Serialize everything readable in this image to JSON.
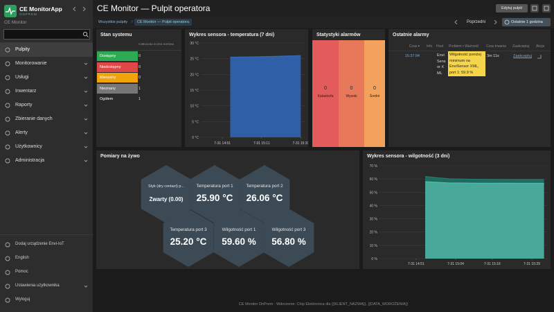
{
  "app": {
    "name": "CE MonitorApp",
    "edition": "ONPREM",
    "instance": "CE Monitor"
  },
  "menu": [
    "Pulpity",
    "Monitorowanie",
    "Usługi",
    "Inwentarz",
    "Raporty",
    "Zbieranie danych",
    "Alerty",
    "Użytkownicy",
    "Administracja"
  ],
  "bottom_menu": [
    "Dodaj urządzenie Envi-IoT",
    "English",
    "Pomoc",
    "Ustawienia użytkownika",
    "Wyloguj"
  ],
  "header": {
    "title": "CE Monitor — Pulpit operatora",
    "edit_button": "Edytuj pulpit"
  },
  "breadcrumb": {
    "root": "Wszystkie pulpity",
    "separator": "/",
    "current": "CE Monitor — Pulpit operatora"
  },
  "time_nav": {
    "previous": "Poprzedni",
    "range": "Ostatnie 1 godzina"
  },
  "system_status": {
    "title": "Stan systemu",
    "column": "Całkowita liczba hostów",
    "rows": [
      {
        "label": "Dostępny",
        "count": 0
      },
      {
        "label": "Niedostępny",
        "count": 0
      },
      {
        "label": "Mieszany",
        "count": 0
      },
      {
        "label": "Nieznany",
        "count": 1
      },
      {
        "label": "Ogółem",
        "count": 1
      }
    ]
  },
  "temperature_chart": {
    "type": "area",
    "title": "Wykres sensora - temperatura (7 dni)",
    "x": [
      "7-31 14:55",
      "7-31 15:05",
      "7-31 15:15",
      "7-31 15:25",
      "7-31 15:31"
    ],
    "values": [
      25.5,
      25.6,
      25.7,
      25.9,
      26.0
    ],
    "color": "#2f5fa6",
    "xlim": [
      "7-31 14:40",
      "7-31 15:33"
    ],
    "xticks": [
      "7-31 14:51",
      "7-31 15:11",
      "7-31 15:31"
    ],
    "ylim": [
      0,
      30
    ],
    "yticks": [
      {
        "value": 0,
        "label": "0 °C"
      },
      {
        "value": 5,
        "label": "5 °C"
      },
      {
        "value": 10,
        "label": "10 °C"
      },
      {
        "value": 15,
        "label": "15 °C"
      },
      {
        "value": 20,
        "label": "20 °C"
      },
      {
        "value": 25,
        "label": "25 °C"
      },
      {
        "value": 30,
        "label": "30 °C"
      }
    ],
    "grid": true
  },
  "alarm_stats": {
    "title": "Statystyki alarmów",
    "items": [
      {
        "label": "Katastrofa",
        "count": 0
      },
      {
        "label": "Wysoki",
        "count": 0
      },
      {
        "label": "Średni",
        "count": 0
      }
    ]
  },
  "recent_alarms": {
    "title": "Ostatnie alarmy",
    "columns": [
      "Czas ▾",
      "Info",
      "Host",
      "Problem • Ważność",
      "Czas trwania",
      "Zaakceptuj",
      "Akcje"
    ],
    "rows": [
      {
        "time": "15:37:04",
        "host": "EnviSensor XML",
        "problem": "Wilgotność poniżej minimum na EnviSensor XML, port 1: 59.9 %",
        "duration": "3m 11s",
        "ack": "Zaakceptuj"
      }
    ]
  },
  "live": {
    "title": "Pomiary na żywo",
    "tiles": [
      {
        "label": "Styk (dry contact) p...",
        "value": "Zwarty (0.00)"
      },
      {
        "label": "Temperatura port 1",
        "value": "25.90 °C"
      },
      {
        "label": "Temperatura port 2",
        "value": "26.06 °C"
      },
      {
        "label": "Temperatura port 3",
        "value": "25.20 °C"
      },
      {
        "label": "Wilgotność port 1",
        "value": "59.60 %"
      },
      {
        "label": "Wilgotność port 3",
        "value": "56.80 %"
      }
    ]
  },
  "humidity_chart": {
    "type": "area",
    "title": "Wykres sensora - wilgotność (3 dni)",
    "x": [
      "7-31 14:54",
      "7-31 14:58",
      "7-31 15:02",
      "7-31 15:06",
      "7-31 15:10",
      "7-31 15:15",
      "7-31 15:20",
      "7-31 15:25",
      "7-31 15:33"
    ],
    "series": [
      {
        "color": "#1f6b5f",
        "values": [
          62,
          61,
          60.2,
          60,
          59.8,
          59.7,
          59.6,
          59.6,
          59.6
        ]
      },
      {
        "color": "#48a899",
        "values": [
          58,
          57.5,
          57,
          57,
          56.9,
          56.8,
          56.9,
          56.8,
          56.8
        ]
      }
    ],
    "xlim": [
      "7-31 14:39",
      "7-31 15:34"
    ],
    "xticks": [
      "7-31 14:51",
      "7-31 15:04",
      "7-31 15:16",
      "7-31 15:29"
    ],
    "ylim": [
      0,
      70
    ],
    "yticks": [
      {
        "value": 0,
        "label": "0 %"
      },
      {
        "value": 10,
        "label": "10 %"
      },
      {
        "value": 20,
        "label": "20 %"
      },
      {
        "value": 30,
        "label": "30 %"
      },
      {
        "value": 40,
        "label": "40 %"
      },
      {
        "value": 50,
        "label": "50 %"
      },
      {
        "value": 60,
        "label": "60 %"
      },
      {
        "value": 70,
        "label": "70 %"
      }
    ],
    "grid": true
  },
  "footer": "CE Monitor OnPrem · Wdrożenie: Chip Elektronica dla {{KLIENT_NAZWA}}, {{DATA_WDROŻENIA}}"
}
